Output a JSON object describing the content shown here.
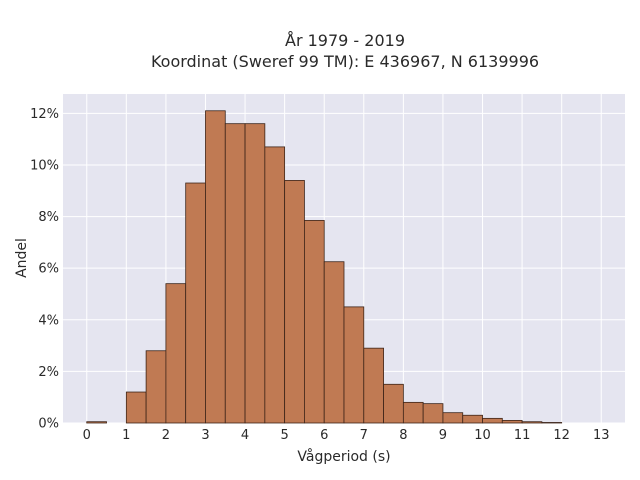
{
  "chart_data": {
    "type": "bar",
    "title_line1": "År 1979 - 2019",
    "title_line2": "Koordinat (Sweref 99 TM): E 436967, N 6139996",
    "xlabel": "Vågperiod (s)",
    "ylabel": "Andel",
    "bin_width": 0.5,
    "x": [
      0,
      0.5,
      1,
      1.5,
      2,
      2.5,
      3,
      3.5,
      4,
      4.5,
      5,
      5.5,
      6,
      6.5,
      7,
      7.5,
      8,
      8.5,
      9,
      9.5,
      10,
      10.5,
      11,
      11.5,
      12,
      12.5
    ],
    "values": [
      0.05,
      0,
      1.2,
      2.8,
      5.4,
      9.3,
      12.1,
      11.6,
      11.6,
      10.7,
      9.4,
      7.85,
      6.25,
      4.5,
      2.9,
      1.5,
      0.8,
      0.75,
      0.4,
      0.3,
      0.18,
      0.1,
      0.05,
      0.02,
      0,
      0
    ],
    "xlim": [
      -0.6,
      13.6
    ],
    "ylim": [
      0,
      12.75
    ],
    "xticks": [
      0,
      1,
      2,
      3,
      4,
      5,
      6,
      7,
      8,
      9,
      10,
      11,
      12,
      13
    ],
    "xtick_labels": [
      "0",
      "1",
      "2",
      "3",
      "4",
      "5",
      "6",
      "7",
      "8",
      "9",
      "10",
      "11",
      "12",
      "13"
    ],
    "yticks": [
      0,
      2,
      4,
      6,
      8,
      10,
      12
    ],
    "ytick_labels": [
      "0%",
      "2%",
      "4%",
      "6%",
      "8%",
      "10%",
      "12%"
    ],
    "grid": true,
    "colors": {
      "bar": "#c07a53",
      "bar_edge": "#3d2418",
      "plot_bg": "#e5e5f0",
      "grid": "#ffffff"
    }
  }
}
